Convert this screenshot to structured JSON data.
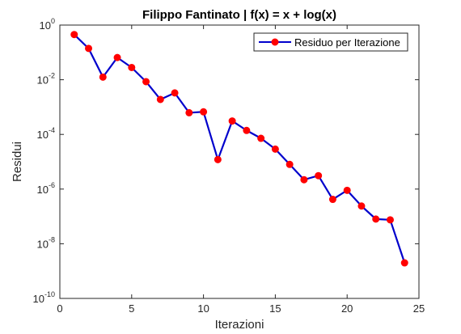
{
  "chart_data": {
    "type": "line",
    "title": "Filippo Fantinato | f(x) = x + log(x)",
    "xlabel": "Iterazioni",
    "ylabel": "Residui",
    "xlim": [
      0,
      25
    ],
    "ylim": [
      1e-10,
      1
    ],
    "yscale": "log",
    "xticks": [
      "0",
      "5",
      "10",
      "15",
      "20",
      "25"
    ],
    "yticks": [
      {
        "base": "10",
        "exp": "-10"
      },
      {
        "base": "10",
        "exp": "-8"
      },
      {
        "base": "10",
        "exp": "-6"
      },
      {
        "base": "10",
        "exp": "-4"
      },
      {
        "base": "10",
        "exp": "-2"
      },
      {
        "base": "10",
        "exp": "0"
      }
    ],
    "legend_position": "top-right",
    "grid": false,
    "series": [
      {
        "name": "Residuo per Iterazione",
        "line_color": "#0000cc",
        "marker_color": "#ff0000",
        "x": [
          1,
          2,
          3,
          4,
          5,
          6,
          7,
          8,
          9,
          10,
          11,
          12,
          13,
          14,
          15,
          16,
          17,
          18,
          19,
          20,
          21,
          22,
          23,
          24
        ],
        "y": [
          0.45,
          0.14,
          0.0125,
          0.065,
          0.028,
          0.0085,
          0.0019,
          0.0033,
          0.00062,
          0.00067,
          1.2e-05,
          0.00031,
          0.00014,
          7.2e-05,
          2.9e-05,
          8e-06,
          2.2e-06,
          3.1e-06,
          4.2e-07,
          9e-07,
          2.4e-07,
          8e-08,
          7.5e-08,
          2e-09
        ]
      }
    ]
  }
}
